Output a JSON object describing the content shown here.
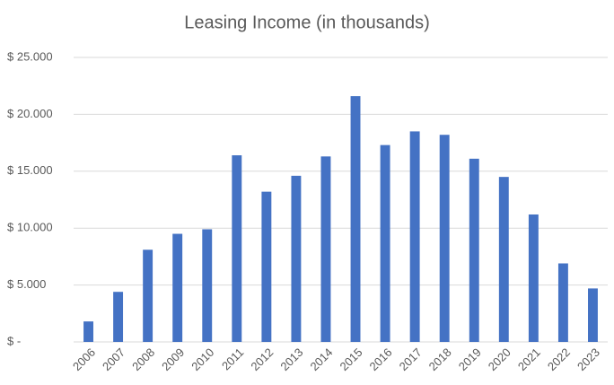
{
  "chart_data": {
    "type": "bar",
    "title": "Leasing Income (in thousands)",
    "categories": [
      "2006",
      "2007",
      "2008",
      "2009",
      "2010",
      "2011",
      "2012",
      "2013",
      "2014",
      "2015",
      "2016",
      "2017",
      "2018",
      "2019",
      "2020",
      "2021",
      "2022",
      "2023"
    ],
    "values": [
      1800,
      4400,
      8100,
      9500,
      9900,
      16400,
      13200,
      14600,
      16300,
      21600,
      17300,
      18500,
      18200,
      16100,
      14500,
      11200,
      6900,
      4700
    ],
    "color": "#4472c4",
    "ylim": [
      0,
      25000
    ],
    "yticks": [
      {
        "value": 0,
        "label": "$ -"
      },
      {
        "value": 5000,
        "label": "$ 5.000"
      },
      {
        "value": 10000,
        "label": "$ 10.000"
      },
      {
        "value": 15000,
        "label": "$ 15.000"
      },
      {
        "value": 20000,
        "label": "$ 20.000"
      },
      {
        "value": 25000,
        "label": "$ 25.000"
      }
    ],
    "grid": true
  }
}
